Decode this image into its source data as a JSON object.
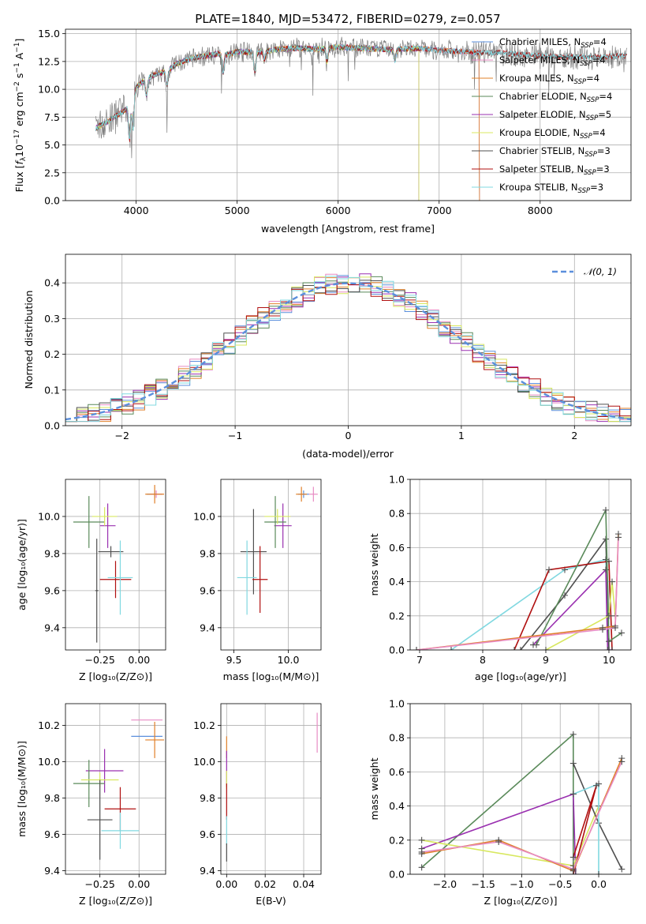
{
  "title": "PLATE=1840, MJD=53472, FIBERID=0279, z=0.057",
  "colors": {
    "Chabrier MILES": "#5b8fdc",
    "Salpeter MILES": "#e88cc4",
    "Kroupa MILES": "#e0802a",
    "Chabrier ELODIE": "#5a8a5a",
    "Salpeter ELODIE": "#9a30b0",
    "Kroupa ELODIE": "#d8e860",
    "Chabrier STELIB": "#505050",
    "Salpeter STELIB": "#b01010",
    "Kroupa STELIB": "#80d8e0",
    "data": "#808080"
  },
  "chart_data": [
    {
      "id": "spectrum",
      "type": "line",
      "title": "PLATE=1840, MJD=53472, FIBERID=0279, z=0.057",
      "xlabel": "wavelength [Angstrom, rest frame]",
      "ylabel_pre": "Flux [",
      "ylabel_f": "f",
      "ylabel_sub": "λ",
      "ylabel_mid": "10",
      "ylabel_sup1": "−17",
      "ylabel_post1": " erg cm",
      "ylabel_sup2": "−2",
      "ylabel_post2": " s",
      "ylabel_sup3": "−1",
      "ylabel_post3": " A",
      "ylabel_sup4": "−1",
      "ylabel_end": "]",
      "xlim": [
        3300,
        8900
      ],
      "ylim": [
        0,
        15.4
      ],
      "xticks": [
        4000,
        5000,
        6000,
        7000,
        8000
      ],
      "yticks": [
        0.0,
        2.5,
        5.0,
        7.5,
        10.0,
        12.5,
        15.0
      ],
      "legend_position": "right",
      "legend": [
        {
          "name": "Chabrier MILES",
          "nssp": "4"
        },
        {
          "name": "Salpeter MILES",
          "nssp": "4"
        },
        {
          "name": "Kroupa MILES",
          "nssp": "4"
        },
        {
          "name": "Chabrier ELODIE",
          "nssp": "4"
        },
        {
          "name": "Salpeter ELODIE",
          "nssp": "5"
        },
        {
          "name": "Kroupa ELODIE",
          "nssp": "4"
        },
        {
          "name": "Chabrier STELIB",
          "nssp": "3"
        },
        {
          "name": "Salpeter STELIB",
          "nssp": "3"
        },
        {
          "name": "Kroupa STELIB",
          "nssp": "3"
        }
      ],
      "legend_n": "N",
      "legend_sub": "SSP",
      "continuum": [
        [
          3600,
          6.5
        ],
        [
          3700,
          7.0
        ],
        [
          3800,
          7.6
        ],
        [
          3900,
          8.2
        ],
        [
          4000,
          10.2
        ],
        [
          4100,
          10.9
        ],
        [
          4200,
          11.4
        ],
        [
          4300,
          11.6
        ],
        [
          4400,
          12.3
        ],
        [
          4500,
          12.6
        ],
        [
          4600,
          12.9
        ],
        [
          4700,
          13.0
        ],
        [
          4800,
          13.2
        ],
        [
          4900,
          13.1
        ],
        [
          5000,
          13.4
        ],
        [
          5200,
          13.3
        ],
        [
          5400,
          13.6
        ],
        [
          5600,
          13.7
        ],
        [
          5800,
          13.6
        ],
        [
          6000,
          13.8
        ],
        [
          6200,
          13.7
        ],
        [
          6400,
          13.6
        ],
        [
          6600,
          13.6
        ],
        [
          6800,
          13.7
        ],
        [
          7000,
          13.5
        ],
        [
          7200,
          13.4
        ],
        [
          7400,
          13.3
        ],
        [
          7600,
          13.3
        ],
        [
          7800,
          13.1
        ],
        [
          8000,
          13.0
        ],
        [
          8200,
          12.9
        ],
        [
          8400,
          12.9
        ],
        [
          8600,
          12.9
        ],
        [
          8800,
          13.0
        ]
      ]
    },
    {
      "id": "residuals",
      "type": "histogram",
      "xlabel": "(data-model)/error",
      "ylabel": "Normed distribution",
      "xlim": [
        -2.5,
        2.5
      ],
      "ylim": [
        0,
        0.48
      ],
      "xticks": [
        -2,
        -1,
        0,
        1,
        2
      ],
      "yticks": [
        0.0,
        0.1,
        0.2,
        0.3,
        0.4
      ],
      "legend": "𝒩(0, 1)",
      "legend_position": "top-right",
      "bin_width": 0.1
    },
    {
      "id": "age-vs-Z",
      "type": "errorbar",
      "xlabel": "Z [log₁₀(Z/Z⊙)]",
      "ylabel": "age  [log₁₀(age/yr)]",
      "xlim": [
        -0.47,
        0.17
      ],
      "ylim": [
        9.28,
        10.2
      ],
      "xticks": [
        -0.25,
        0.0
      ],
      "yticks": [
        9.4,
        9.6,
        9.8,
        10.0
      ],
      "points": [
        {
          "model": "Chabrier MILES",
          "x": 0.1,
          "y": 10.12,
          "xerr": 0.05,
          "yerr": 0.02
        },
        {
          "model": "Salpeter MILES",
          "x": 0.11,
          "y": 10.12,
          "xerr": 0.04,
          "yerr": 0.02
        },
        {
          "model": "Kroupa MILES",
          "x": 0.1,
          "y": 10.12,
          "xerr": 0.06,
          "yerr": 0.05
        },
        {
          "model": "Chabrier ELODIE",
          "x": -0.32,
          "y": 9.97,
          "xerr": 0.1,
          "yerr": 0.14
        },
        {
          "model": "Salpeter ELODIE",
          "x": -0.2,
          "y": 9.95,
          "xerr": 0.05,
          "yerr": 0.12
        },
        {
          "model": "Kroupa ELODIE",
          "x": -0.22,
          "y": 10.0,
          "xerr": 0.08,
          "yerr": 0.05
        },
        {
          "model": "Chabrier STELIB",
          "x": -0.18,
          "y": 9.81,
          "xerr": 0.08,
          "yerr": 0.03
        },
        {
          "model": "Salpeter STELIB",
          "x": -0.15,
          "y": 9.66,
          "xerr": 0.1,
          "yerr": 0.1
        },
        {
          "model": "Kroupa STELIB",
          "x": -0.12,
          "y": 9.67,
          "xerr": 0.08,
          "yerr": 0.2
        },
        {
          "model": "Chabrier STELIB",
          "x": -0.27,
          "y": 9.6,
          "xerr": 0.01,
          "yerr": 0.28
        }
      ]
    },
    {
      "id": "age-vs-mass",
      "type": "errorbar",
      "xlabel": "mass [log₁₀(M/M⊙)]",
      "ylabel": "",
      "xlim": [
        9.38,
        10.3
      ],
      "ylim": [
        9.28,
        10.2
      ],
      "xticks": [
        9.5,
        10.0
      ],
      "yticks": [
        9.4,
        9.6,
        9.8,
        10.0
      ],
      "points": [
        {
          "model": "Salpeter MILES",
          "x": 10.23,
          "y": 10.12,
          "xerr": 0.04,
          "yerr": 0.04
        },
        {
          "model": "Chabrier MILES",
          "x": 10.14,
          "y": 10.12,
          "xerr": 0.05,
          "yerr": 0.02
        },
        {
          "model": "Kroupa MILES",
          "x": 10.12,
          "y": 10.12,
          "xerr": 0.05,
          "yerr": 0.04
        },
        {
          "model": "Salpeter ELODIE",
          "x": 9.95,
          "y": 9.95,
          "xerr": 0.08,
          "yerr": 0.12
        },
        {
          "model": "Chabrier ELODIE",
          "x": 9.88,
          "y": 9.97,
          "xerr": 0.1,
          "yerr": 0.14
        },
        {
          "model": "Kroupa ELODIE",
          "x": 9.9,
          "y": 10.0,
          "xerr": 0.12,
          "yerr": 0.04
        },
        {
          "model": "Chabrier STELIB",
          "x": 9.68,
          "y": 9.81,
          "xerr": 0.12,
          "yerr": 0.23
        },
        {
          "model": "Salpeter STELIB",
          "x": 9.74,
          "y": 9.66,
          "xerr": 0.07,
          "yerr": 0.18
        },
        {
          "model": "Kroupa STELIB",
          "x": 9.62,
          "y": 9.67,
          "xerr": 0.09,
          "yerr": 0.2
        }
      ]
    },
    {
      "id": "weight-vs-age",
      "type": "line",
      "xlabel": "age  [log₁₀(age/yr)]",
      "ylabel": "mass weight",
      "xlim": [
        6.85,
        10.35
      ],
      "ylim": [
        0,
        1.0
      ],
      "xticks": [
        7,
        8,
        9,
        10
      ],
      "yticks": [
        0.0,
        0.2,
        0.4,
        0.6,
        0.8,
        1.0
      ],
      "series": [
        {
          "model": "Kroupa STELIB",
          "x": [
            7.5,
            9.3,
            9.95,
            10.0
          ],
          "y": [
            0.0,
            0.47,
            0.53,
            0.0
          ]
        },
        {
          "model": "Chabrier STELIB",
          "x": [
            8.6,
            9.3,
            9.95,
            10.0
          ],
          "y": [
            0.0,
            0.32,
            0.65,
            0.0
          ]
        },
        {
          "model": "Salpeter STELIB",
          "x": [
            8.5,
            9.05,
            10.0,
            10.05
          ],
          "y": [
            0.0,
            0.47,
            0.52,
            0.0
          ]
        },
        {
          "model": "Salpeter ELODIE",
          "x": [
            8.8,
            9.95,
            9.98,
            10.05
          ],
          "y": [
            0.03,
            0.47,
            0.0,
            0.0
          ]
        },
        {
          "model": "Chabrier ELODIE",
          "x": [
            8.85,
            9.95,
            10.0,
            10.2
          ],
          "y": [
            0.03,
            0.82,
            0.05,
            0.1
          ]
        },
        {
          "model": "Kroupa ELODIE",
          "x": [
            9.0,
            10.0,
            10.05,
            10.1
          ],
          "y": [
            0.0,
            0.2,
            0.4,
            0.2
          ]
        },
        {
          "model": "Kroupa MILES",
          "x": [
            6.95,
            9.9,
            10.1,
            10.15
          ],
          "y": [
            0.0,
            0.13,
            0.14,
            0.68
          ]
        },
        {
          "model": "Salpeter MILES",
          "x": [
            6.95,
            9.9,
            10.1,
            10.15
          ],
          "y": [
            0.0,
            0.12,
            0.13,
            0.66
          ]
        }
      ]
    },
    {
      "id": "mass-vs-Z",
      "type": "errorbar",
      "xlabel": "Z [log₁₀(Z/Z⊙)]",
      "ylabel": "mass [log₁₀(M/M⊙)]",
      "xlim": [
        -0.47,
        0.17
      ],
      "ylim": [
        9.38,
        10.32
      ],
      "xticks": [
        -0.25,
        0.0
      ],
      "yticks": [
        9.4,
        9.6,
        9.8,
        10.0,
        10.2
      ],
      "points": [
        {
          "model": "Salpeter MILES",
          "x": 0.05,
          "y": 10.23,
          "xerr": 0.1,
          "yerr": 0.0
        },
        {
          "model": "Chabrier MILES",
          "x": 0.05,
          "y": 10.14,
          "xerr": 0.1,
          "yerr": 0.0
        },
        {
          "model": "Kroupa MILES",
          "x": 0.1,
          "y": 10.12,
          "xerr": 0.06,
          "yerr": 0.1
        },
        {
          "model": "Salpeter ELODIE",
          "x": -0.22,
          "y": 9.95,
          "xerr": 0.12,
          "yerr": 0.12
        },
        {
          "model": "Chabrier ELODIE",
          "x": -0.32,
          "y": 9.88,
          "xerr": 0.1,
          "yerr": 0.13
        },
        {
          "model": "Kroupa ELODIE",
          "x": -0.25,
          "y": 9.9,
          "xerr": 0.12,
          "yerr": 0.04
        },
        {
          "model": "Salpeter STELIB",
          "x": -0.12,
          "y": 9.74,
          "xerr": 0.1,
          "yerr": 0.12
        },
        {
          "model": "Chabrier STELIB",
          "x": -0.25,
          "y": 9.68,
          "xerr": 0.08,
          "yerr": 0.22
        },
        {
          "model": "Kroupa STELIB",
          "x": -0.12,
          "y": 9.62,
          "xerr": 0.12,
          "yerr": 0.1
        }
      ]
    },
    {
      "id": "mass-vs-ebv",
      "type": "errorbar",
      "xlabel": "E(B-V)",
      "ylabel": "",
      "xlim": [
        -0.003,
        0.049
      ],
      "ylim": [
        9.38,
        10.32
      ],
      "xticks": [
        0.0,
        0.02,
        0.04
      ],
      "yticks": [
        9.4,
        9.6,
        9.8,
        10.0,
        10.2
      ],
      "points": [
        {
          "model": "Salpeter MILES",
          "x": 0.047,
          "y": 10.16,
          "xerr": 0.0,
          "yerr": 0.11
        },
        {
          "model": "Kroupa MILES",
          "x": 0.0,
          "y": 10.08,
          "xerr": 0.0,
          "yerr": 0.06
        },
        {
          "model": "Salpeter ELODIE",
          "x": 0.0,
          "y": 9.96,
          "xerr": 0.0,
          "yerr": 0.1
        },
        {
          "model": "Kroupa ELODIE",
          "x": 0.0,
          "y": 9.9,
          "xerr": 0.0,
          "yerr": 0.05
        },
        {
          "model": "Salpeter STELIB",
          "x": 0.0,
          "y": 9.78,
          "xerr": 0.0,
          "yerr": 0.1
        },
        {
          "model": "Kroupa STELIB",
          "x": 0.0,
          "y": 9.62,
          "xerr": 0.0,
          "yerr": 0.08
        },
        {
          "model": "Chabrier STELIB",
          "x": 0.0,
          "y": 9.5,
          "xerr": 0.0,
          "yerr": 0.05
        }
      ]
    },
    {
      "id": "weight-vs-Z",
      "type": "line",
      "xlabel": "Z [log₁₀(Z/Z⊙)]",
      "ylabel": "mass weight",
      "xlim": [
        -2.45,
        0.42
      ],
      "ylim": [
        0,
        1.0
      ],
      "xticks": [
        -2.0,
        -1.5,
        -1.0,
        -0.5,
        0.0
      ],
      "yticks": [
        0.0,
        0.2,
        0.4,
        0.6,
        0.8,
        1.0
      ],
      "series": [
        {
          "model": "Chabrier ELODIE",
          "x": [
            -2.3,
            -0.33,
            -0.33
          ],
          "y": [
            0.04,
            0.82,
            0.0
          ]
        },
        {
          "model": "Salpeter ELODIE",
          "x": [
            -2.3,
            -0.33,
            -0.3
          ],
          "y": [
            0.15,
            0.47,
            0.0
          ]
        },
        {
          "model": "Kroupa ELODIE",
          "x": [
            -2.3,
            -0.33,
            0.0
          ],
          "y": [
            0.2,
            0.05,
            0.4
          ]
        },
        {
          "model": "Chabrier STELIB",
          "x": [
            -0.33,
            0.0,
            0.3
          ],
          "y": [
            0.65,
            0.3,
            0.03
          ]
        },
        {
          "model": "Kroupa STELIB",
          "x": [
            -0.33,
            0.0,
            0.0
          ],
          "y": [
            0.47,
            0.53,
            0.0
          ]
        },
        {
          "model": "Salpeter STELIB",
          "x": [
            -0.33,
            -0.03,
            -0.33
          ],
          "y": [
            0.0,
            0.52,
            0.1
          ]
        },
        {
          "model": "Kroupa MILES",
          "x": [
            -2.3,
            -1.3,
            -0.33,
            0.3
          ],
          "y": [
            0.12,
            0.2,
            0.02,
            0.68
          ]
        },
        {
          "model": "Salpeter MILES",
          "x": [
            -2.3,
            -1.3,
            -0.33,
            0.3
          ],
          "y": [
            0.13,
            0.19,
            0.03,
            0.66
          ]
        }
      ]
    }
  ]
}
